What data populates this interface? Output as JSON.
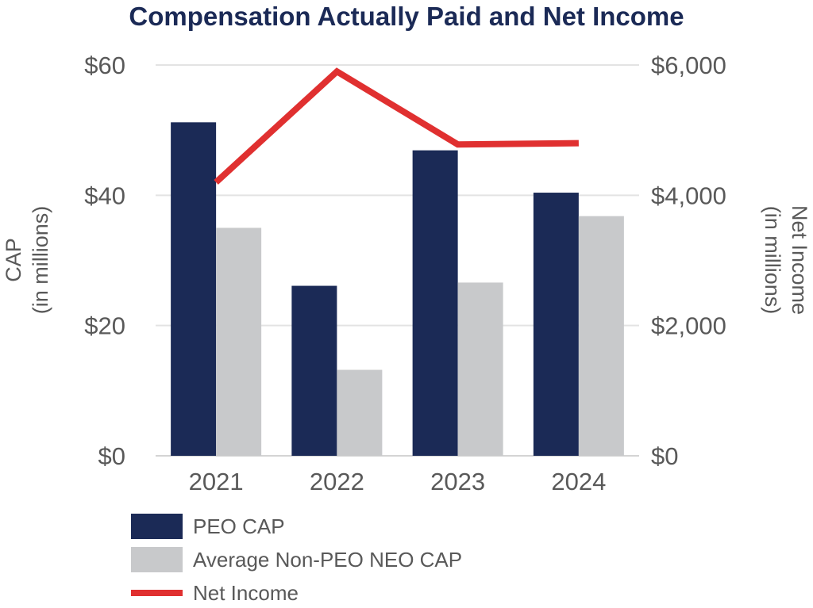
{
  "chart_data": {
    "type": "bar",
    "title": "Compensation Actually Paid and Net Income",
    "categories": [
      "2021",
      "2022",
      "2023",
      "2024"
    ],
    "y_left": {
      "label_lines": [
        "CAP",
        "(in millions)"
      ],
      "ticks": [
        "$0",
        "$20",
        "$40",
        "$60"
      ],
      "ylim": [
        0,
        60
      ]
    },
    "y_right": {
      "label_lines": [
        "Net Income",
        "(in millions)"
      ],
      "ticks": [
        "$0",
        "$2,000",
        "$4,000",
        "$6,000"
      ],
      "ylim": [
        0,
        6000
      ]
    },
    "series": [
      {
        "name": "PEO CAP",
        "type": "bar",
        "axis": "left",
        "color": "#1b2a56",
        "values": [
          51.2,
          26.1,
          46.9,
          40.4
        ]
      },
      {
        "name": "Average Non-PEO NEO CAP",
        "type": "bar",
        "axis": "left",
        "color": "#c8c9cb",
        "values": [
          35.0,
          13.2,
          26.6,
          36.8
        ]
      },
      {
        "name": "Net Income",
        "type": "line",
        "axis": "right",
        "color": "#e03030",
        "values": [
          4200,
          5900,
          4780,
          4800
        ]
      }
    ],
    "grid": true,
    "legend": "bottom-left"
  }
}
